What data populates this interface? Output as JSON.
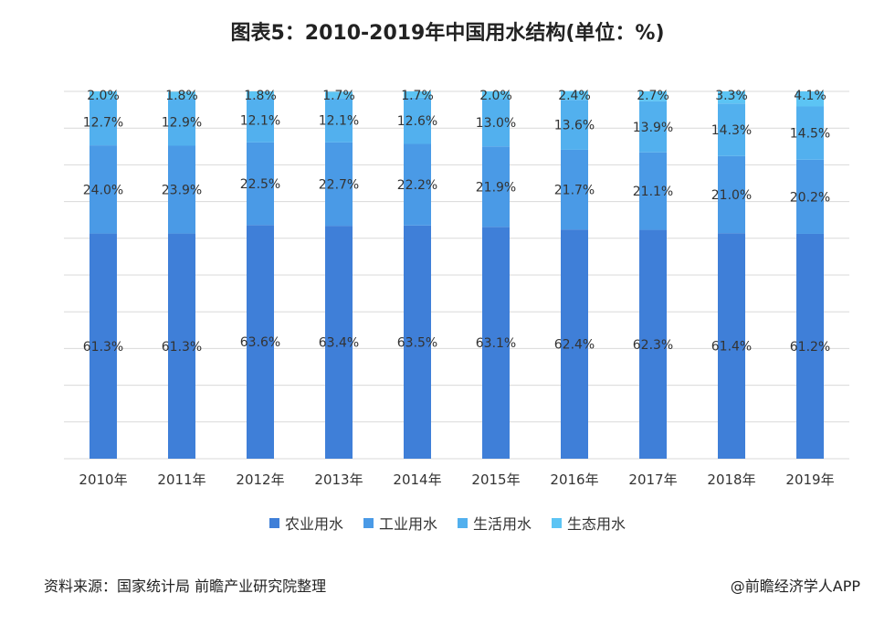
{
  "title": "图表5：2010-2019年中国用水结构(单位：%)",
  "source": "资料来源：国家统计局 前瞻产业研究院整理",
  "brand": "@前瞻经济学人APP",
  "chart_data": {
    "type": "bar",
    "stacked": true,
    "categories": [
      "2010年",
      "2011年",
      "2012年",
      "2013年",
      "2014年",
      "2015年",
      "2016年",
      "2017年",
      "2018年",
      "2019年"
    ],
    "series": [
      {
        "name": "农业用水",
        "values": [
          61.3,
          61.3,
          63.6,
          63.4,
          63.5,
          63.1,
          62.4,
          62.3,
          61.4,
          61.2
        ],
        "labels": [
          "61.3%",
          "61.3%",
          "63.6%",
          "63.4%",
          "63.5%",
          "63.1%",
          "62.4%",
          "62.3%",
          "61.4%",
          "61.2%"
        ],
        "color": "#3f7fd8"
      },
      {
        "name": "工业用水",
        "values": [
          24.0,
          23.9,
          22.5,
          22.7,
          22.2,
          21.9,
          21.7,
          21.1,
          21.0,
          20.2
        ],
        "labels": [
          "24.0%",
          "23.9%",
          "22.5%",
          "22.7%",
          "22.2%",
          "21.9%",
          "21.7%",
          "21.1%",
          "21.0%",
          "20.2%"
        ],
        "color": "#4a9ae6"
      },
      {
        "name": "生活用水",
        "values": [
          12.7,
          12.9,
          12.1,
          12.1,
          12.6,
          13.0,
          13.6,
          13.9,
          14.3,
          14.5
        ],
        "labels": [
          "12.7%",
          "12.9%",
          "12.1%",
          "12.1%",
          "12.6%",
          "13.0%",
          "13.6%",
          "13.9%",
          "14.3%",
          "14.5%"
        ],
        "color": "#52b0ee"
      },
      {
        "name": "生态用水",
        "values": [
          2.0,
          1.8,
          1.8,
          1.7,
          1.7,
          2.0,
          2.4,
          2.7,
          3.3,
          4.1
        ],
        "labels": [
          "2.0%",
          "1.8%",
          "1.8%",
          "1.7%",
          "1.7%",
          "2.0%",
          "2.4%",
          "2.7%",
          "3.3%",
          "4.1%"
        ],
        "color": "#5cc4f4"
      }
    ],
    "ylim": [
      0,
      100
    ],
    "grid": true,
    "legend": "bottom"
  }
}
